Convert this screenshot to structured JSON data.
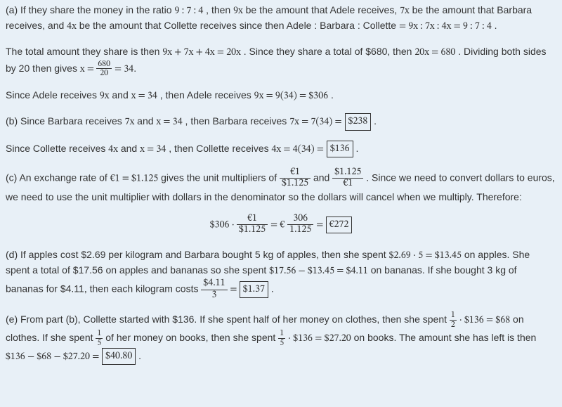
{
  "body_font_size_pt": 11,
  "math_font": "serif",
  "background_color": "#e8f0f7",
  "text_color": "#333333",
  "boxed_border_color": "#333333",
  "partA": {
    "line1_pre": "(a) If they share the money in the ratio ",
    "ratio": "9 : 7 : 4",
    "line1_mid1": ", then ",
    "nineX": "9x",
    "line1_mid2": " be the amount that Adele receives, ",
    "sevenX": "7x",
    "line1_mid3": " be the amount that Barbara receives, and ",
    "fourX": "4x",
    "line1_mid4": " be the amount that Collette receives since then Adele : Barbara : Collette ",
    "ratio_expr": "= 9x : 7x : 4x = 9 : 7 : 4",
    "line1_end": ".",
    "line2_pre": "The total amount they share is then ",
    "sum_expr": "9x + 7x + 4x = 20x",
    "line2_mid": ". Since they share a total of $680, then ",
    "eq680": "20x = 680",
    "line2_mid2": ". Dividing both sides by 20 then gives ",
    "x_eq": "x = ",
    "frac_num": "680",
    "frac_den": "20",
    "eq34": " = 34",
    "line3_pre": "Since Adele receives ",
    "line3_and": " and ",
    "x34": "x = 34",
    "line3_then": ", then Adele receives ",
    "adele_calc": "9x = 9(34) = $306",
    "line3_end": "."
  },
  "partB": {
    "line1_pre": "(b) Since Barbara receives ",
    "sevenX": "7x",
    "line1_and": " and ",
    "x34": "x = 34",
    "line1_then": ", then Barbara receives ",
    "barb_calc": "7x = 7(34) =",
    "barb_box": "$238",
    "line1_end": ".",
    "line2_pre": "Since Collette receives ",
    "fourX": "4x",
    "line2_then": ", then Collette receives ",
    "col_calc": "4x = 4(34) =",
    "col_box": "$136",
    "line2_end": "."
  },
  "partC": {
    "line1_pre": "(c) An exchange rate of ",
    "rate": "€1 = $1.125",
    "line1_mid1": " gives the unit multipliers of ",
    "f1_num": "€1",
    "f1_den": "$1.125",
    "line1_and": " and ",
    "f2_num": "$1.125",
    "f2_den": "€1",
    "line1_mid2": ". Since we need to convert dollars to euros, we need to use the unit multiplier with dollars in the denominator so the dollars will cancel when we multiply. Therefore:",
    "eq_left": "$306 · ",
    "eq_f_num": "€1",
    "eq_f_den": "$1.125",
    "eq_mid": " = €",
    "eq_f2_num": "306",
    "eq_f2_den": "1.125",
    "eq_eq": " = ",
    "eq_box": "€272"
  },
  "partD": {
    "line1_pre": "(d) If apples cost $2.69 per kilogram and Barbara bought 5 kg of apples, then she spent ",
    "apples_calc": "$2.69 · 5 = $13.45",
    "line1_mid1": " on apples. She spent a total of $17.56 on apples and bananas so she spent ",
    "ban_sub": "$17.56 − $13.45 = $4.11",
    "line1_mid2": " on bananas. If she bought 3 kg of bananas for $4.11, then each kilogram costs ",
    "f_num": "$4.11",
    "f_den": "3",
    "eq": " = ",
    "box": "$1.37",
    "end": "."
  },
  "partE": {
    "line1_pre": "(e) From part (b), Collette started with $136. If she spent half of her money on clothes, then she spent ",
    "half_num": "1",
    "half_den": "2",
    "dot1": " · $136 = $68",
    "line1_mid1": " on clothes. If she spent ",
    "fifth_num": "1",
    "fifth_den": "5",
    "line1_mid2": " of her money on books, then she spent ",
    "dot2": " · $136 = $27.20",
    "line1_mid3": " on books. The amount she has left is then ",
    "final_sub": "$136 − $68 − $27.20 =",
    "box": "$40.80",
    "end": "."
  }
}
